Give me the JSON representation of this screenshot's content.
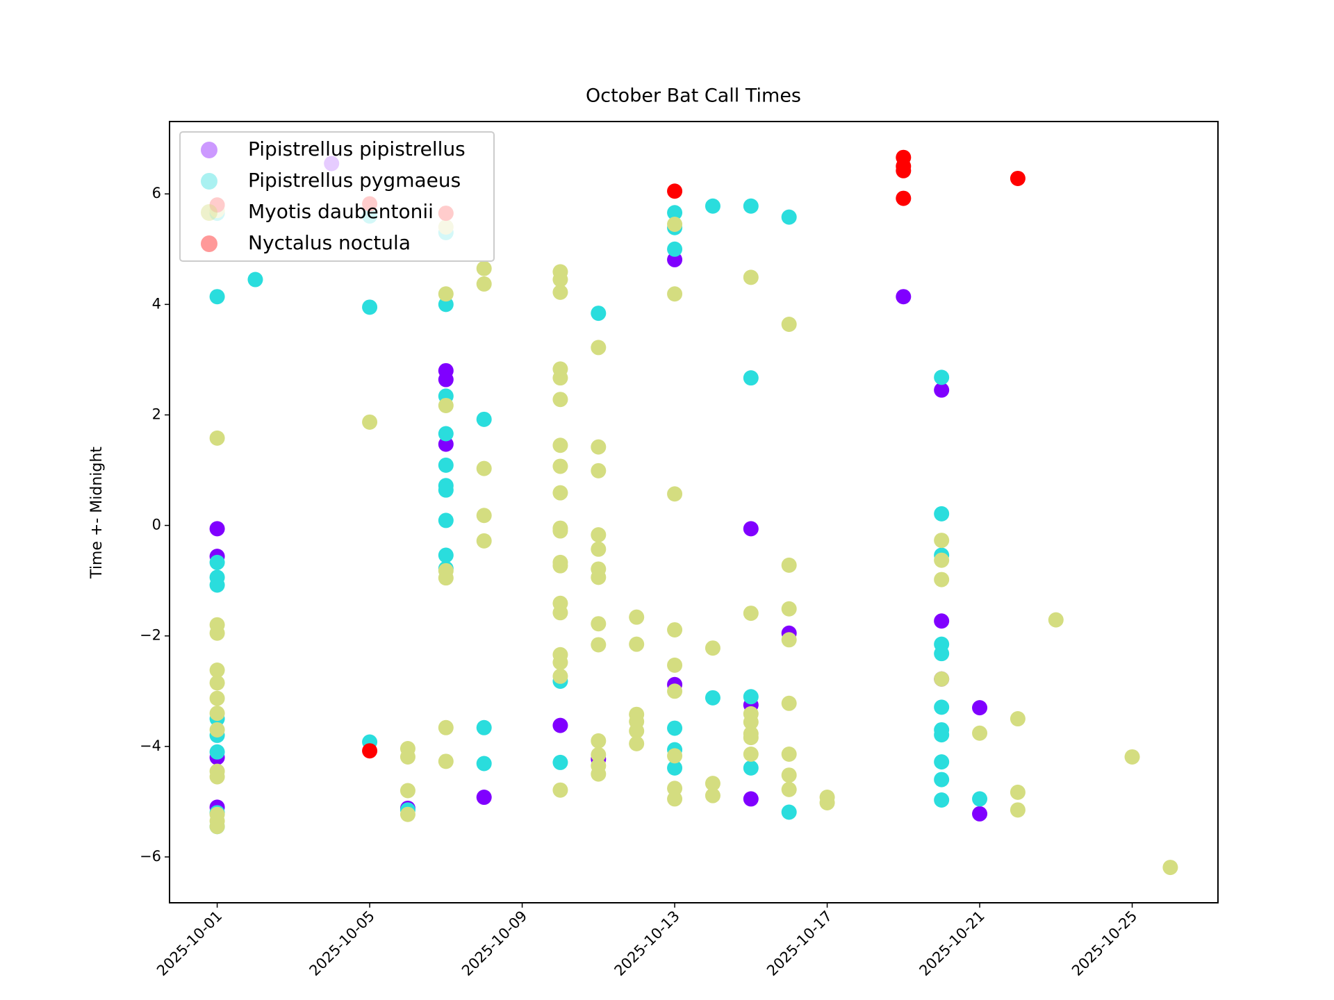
{
  "chart_data": {
    "type": "scatter",
    "title": "October Bat Call Times",
    "y_label": "Time +- Midnight",
    "xlim": [
      "2025-09-29T18:00",
      "2025-10-27T06:00"
    ],
    "xticks": [
      "2025-10-01",
      "2025-10-05",
      "2025-10-09",
      "2025-10-13",
      "2025-10-17",
      "2025-10-21",
      "2025-10-25"
    ],
    "ylim": [
      -6.83,
      7.31
    ],
    "yticks": [
      {
        "value": -6,
        "label": "−6"
      },
      {
        "value": -4,
        "label": "−4"
      },
      {
        "value": -2,
        "label": "−2"
      },
      0,
      2,
      4,
      6
    ],
    "legend": "upper left",
    "series": [
      {
        "name": "Pipistrellus pipistrellus",
        "color": "#8000ff",
        "x": [
          "2025-10-01",
          "2025-10-01",
          "2025-10-01",
          "2025-10-01",
          "2025-10-04",
          "2025-10-06",
          "2025-10-07",
          "2025-10-07",
          "2025-10-07",
          "2025-10-08",
          "2025-10-10",
          "2025-10-11",
          "2025-10-13",
          "2025-10-13",
          "2025-10-15",
          "2025-10-15",
          "2025-10-15",
          "2025-10-16",
          "2025-10-19",
          "2025-10-20",
          "2025-10-20",
          "2025-10-20",
          "2025-10-21",
          "2025-10-21"
        ],
        "values": [
          -0.06,
          -0.56,
          -4.2,
          -5.1,
          6.55,
          -5.12,
          2.8,
          2.64,
          1.47,
          -4.92,
          -3.62,
          -4.23,
          4.81,
          -2.88,
          -0.06,
          -3.25,
          -4.95,
          -1.95,
          4.14,
          2.45,
          -1.73,
          -2.78,
          -3.3,
          -5.22
        ]
      },
      {
        "name": "Pipistrellus pygmaeus",
        "color": "#2adddd",
        "x": [
          "2025-10-01",
          "2025-10-01",
          "2025-10-01",
          "2025-10-01",
          "2025-10-01",
          "2025-10-01",
          "2025-10-01",
          "2025-10-01",
          "2025-10-01",
          "2025-10-01",
          "2025-10-02",
          "2025-10-05",
          "2025-10-05",
          "2025-10-05",
          "2025-10-06",
          "2025-10-07",
          "2025-10-07",
          "2025-10-07",
          "2025-10-07",
          "2025-10-07",
          "2025-10-07",
          "2025-10-07",
          "2025-10-07",
          "2025-10-07",
          "2025-10-07",
          "2025-10-08",
          "2025-10-08",
          "2025-10-08",
          "2025-10-10",
          "2025-10-10",
          "2025-10-11",
          "2025-10-13",
          "2025-10-13",
          "2025-10-13",
          "2025-10-13",
          "2025-10-13",
          "2025-10-13",
          "2025-10-14",
          "2025-10-14",
          "2025-10-15",
          "2025-10-15",
          "2025-10-15",
          "2025-10-15",
          "2025-10-16",
          "2025-10-16",
          "2025-10-20",
          "2025-10-20",
          "2025-10-20",
          "2025-10-20",
          "2025-10-20",
          "2025-10-20",
          "2025-10-20",
          "2025-10-20",
          "2025-10-20",
          "2025-10-20",
          "2025-10-20",
          "2025-10-21"
        ],
        "values": [
          5.65,
          4.14,
          -0.67,
          -0.94,
          -1.08,
          -3.5,
          -3.8,
          -4.1,
          -5.2,
          -5.45,
          4.45,
          5.6,
          3.95,
          -3.92,
          -5.15,
          5.3,
          4.0,
          2.34,
          1.66,
          1.09,
          0.72,
          0.64,
          0.09,
          -0.54,
          -0.78,
          1.92,
          -3.66,
          -4.31,
          -2.82,
          -4.29,
          3.84,
          5.66,
          5.39,
          5.0,
          -3.67,
          -4.06,
          -4.39,
          5.78,
          -3.12,
          5.78,
          2.67,
          -3.1,
          -4.39,
          5.58,
          -5.19,
          2.68,
          0.21,
          -0.54,
          -2.15,
          -2.32,
          -3.29,
          -3.7,
          -3.79,
          -4.28,
          -4.6,
          -4.97,
          -4.95
        ]
      },
      {
        "name": "Myotis daubentonii",
        "color": "#d4dd80",
        "x": [
          "2025-10-01",
          "2025-10-01",
          "2025-10-01",
          "2025-10-01",
          "2025-10-01",
          "2025-10-01",
          "2025-10-01",
          "2025-10-01",
          "2025-10-01",
          "2025-10-01",
          "2025-10-01",
          "2025-10-01",
          "2025-10-01",
          "2025-10-01",
          "2025-10-05",
          "2025-10-06",
          "2025-10-06",
          "2025-10-06",
          "2025-10-06",
          "2025-10-07",
          "2025-10-07",
          "2025-10-07",
          "2025-10-07",
          "2025-10-07",
          "2025-10-07",
          "2025-10-07",
          "2025-10-07",
          "2025-10-08",
          "2025-10-08",
          "2025-10-08",
          "2025-10-08",
          "2025-10-08",
          "2025-10-10",
          "2025-10-10",
          "2025-10-10",
          "2025-10-10",
          "2025-10-10",
          "2025-10-10",
          "2025-10-10",
          "2025-10-10",
          "2025-10-10",
          "2025-10-10",
          "2025-10-10",
          "2025-10-10",
          "2025-10-10",
          "2025-10-10",
          "2025-10-10",
          "2025-10-10",
          "2025-10-10",
          "2025-10-10",
          "2025-10-10",
          "2025-10-11",
          "2025-10-11",
          "2025-10-11",
          "2025-10-11",
          "2025-10-11",
          "2025-10-11",
          "2025-10-11",
          "2025-10-11",
          "2025-10-11",
          "2025-10-11",
          "2025-10-11",
          "2025-10-11",
          "2025-10-11",
          "2025-10-12",
          "2025-10-12",
          "2025-10-12",
          "2025-10-12",
          "2025-10-12",
          "2025-10-12",
          "2025-10-13",
          "2025-10-13",
          "2025-10-13",
          "2025-10-13",
          "2025-10-13",
          "2025-10-13",
          "2025-10-13",
          "2025-10-13",
          "2025-10-13",
          "2025-10-14",
          "2025-10-14",
          "2025-10-14",
          "2025-10-15",
          "2025-10-15",
          "2025-10-15",
          "2025-10-15",
          "2025-10-15",
          "2025-10-15",
          "2025-10-15",
          "2025-10-16",
          "2025-10-16",
          "2025-10-16",
          "2025-10-16",
          "2025-10-16",
          "2025-10-16",
          "2025-10-16",
          "2025-10-16",
          "2025-10-17",
          "2025-10-17",
          "2025-10-20",
          "2025-10-20",
          "2025-10-20",
          "2025-10-20",
          "2025-10-21",
          "2025-10-22",
          "2025-10-22",
          "2025-10-22",
          "2025-10-23",
          "2025-10-25",
          "2025-10-26"
        ],
        "values": [
          5.7,
          1.58,
          -1.8,
          -1.95,
          -2.62,
          -2.85,
          -3.13,
          -3.4,
          -3.7,
          -4.45,
          -4.55,
          -5.23,
          -5.35,
          -5.45,
          1.87,
          -4.04,
          -4.19,
          -4.8,
          -5.23,
          5.65,
          5.4,
          4.19,
          2.17,
          -0.82,
          -0.95,
          -3.66,
          -4.27,
          4.65,
          4.37,
          1.03,
          0.18,
          -0.28,
          4.59,
          4.45,
          4.22,
          2.83,
          2.67,
          2.28,
          1.45,
          1.07,
          0.59,
          -0.05,
          -0.1,
          -0.67,
          -0.73,
          -1.41,
          -1.58,
          -2.34,
          -2.48,
          -2.73,
          -4.79,
          3.22,
          1.42,
          0.99,
          -0.17,
          -0.43,
          -0.79,
          -0.94,
          -1.78,
          -2.16,
          -3.9,
          -4.15,
          -4.35,
          -4.5,
          -1.66,
          -2.15,
          -3.42,
          -3.55,
          -3.72,
          -3.95,
          5.45,
          4.19,
          0.57,
          -1.89,
          -2.53,
          -3.0,
          -4.17,
          -4.76,
          -4.95,
          -2.22,
          -4.67,
          -4.89,
          4.49,
          -1.59,
          -3.41,
          -3.56,
          -3.77,
          -3.84,
          -4.14,
          3.64,
          -0.72,
          -1.51,
          -2.07,
          -3.22,
          -4.14,
          -4.52,
          -4.78,
          -4.92,
          -5.02,
          -0.27,
          -0.63,
          -0.98,
          -2.78,
          -3.76,
          -3.5,
          -4.83,
          -5.15,
          -1.71,
          -4.19,
          -6.19
        ]
      },
      {
        "name": "Nyctalus noctula",
        "color": "#ff0000",
        "x": [
          "2025-10-01",
          "2025-10-05",
          "2025-10-05",
          "2025-10-07",
          "2025-10-13",
          "2025-10-19",
          "2025-10-19",
          "2025-10-19",
          "2025-10-19",
          "2025-10-22"
        ],
        "values": [
          5.8,
          5.82,
          -4.08,
          5.65,
          6.05,
          6.66,
          6.5,
          6.42,
          5.92,
          6.28
        ]
      }
    ]
  }
}
